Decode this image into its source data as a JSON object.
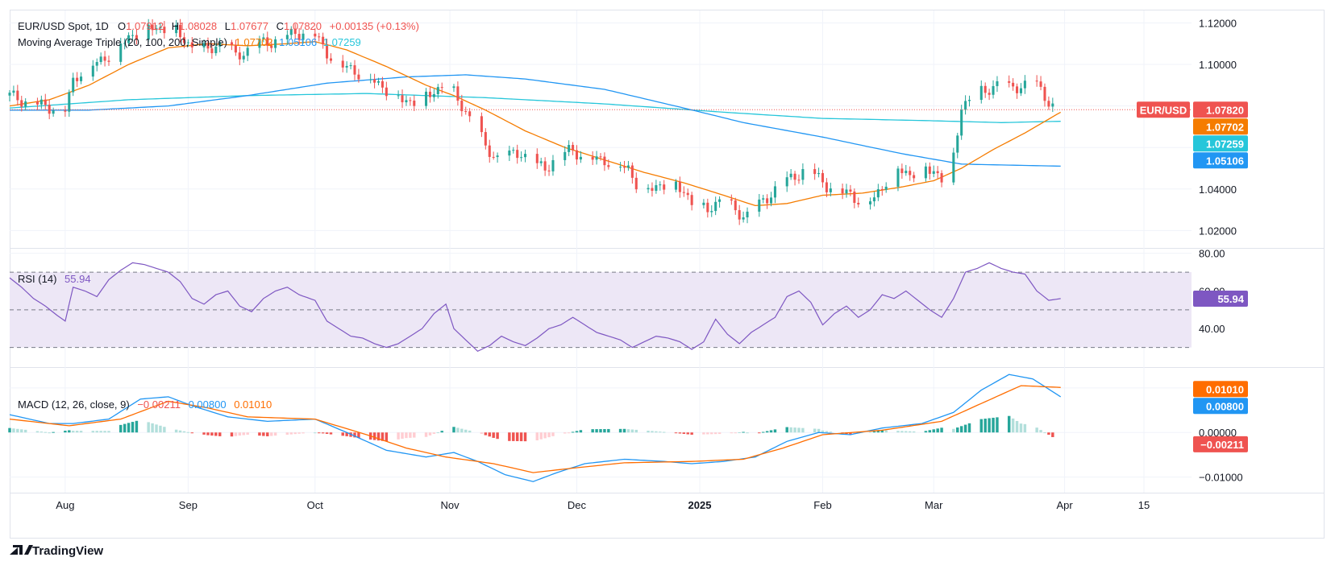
{
  "header": {
    "symbol": "EUR/USD Spot, 1D",
    "o_label": "O",
    "o_value": "1.07912",
    "h_label": "H",
    "h_value": "1.08028",
    "l_label": "L",
    "l_value": "1.07677",
    "c_label": "C",
    "c_value": "1.07820",
    "change": "+0.00135 (+0.13%)"
  },
  "ma_legend": {
    "label": "Moving Average Triple (20, 100, 200, Simple)",
    "v1": "1.07702",
    "v2": "1.05106",
    "v3": "1.07259"
  },
  "rsi_legend": {
    "label": "RSI (14)",
    "value": "55.94"
  },
  "macd_legend": {
    "label": "MACD (12, 26, close, 9)",
    "hist": "−0.00211",
    "macd": "0.00800",
    "signal": "0.01010"
  },
  "branding": {
    "logo_text": "TradingView"
  },
  "colors": {
    "up": "#26a69a",
    "down": "#ef5350",
    "ma20": "#f57c00",
    "ma100": "#2196f3",
    "ma200": "#26c6da",
    "rsi": "#7e57c2",
    "rsi_band": "#ede7f6",
    "macd": "#2196f3",
    "signal": "#ff6d00",
    "hist_up_strong": "#26a69a",
    "hist_up_weak": "#b2dfdb",
    "hist_down_strong": "#ef5350",
    "hist_down_weak": "#ffcdd2",
    "grid": "#f0f3fa",
    "border": "#e0e3eb"
  },
  "chart_data": [
    {
      "type": "candlestick",
      "title": "EUR/USD Spot, 1D",
      "ylim": [
        1.012,
        1.126
      ],
      "yticks": [
        "1.12000",
        "1.10000",
        "1.04000",
        "1.02000"
      ],
      "ytick_values": [
        1.12,
        1.1,
        1.04,
        1.02
      ],
      "x_labels": [
        "Aug",
        "Sep",
        "Oct",
        "Nov",
        "Dec",
        "2025",
        "Feb",
        "Mar",
        "Apr",
        "15"
      ],
      "x_label_index": [
        14,
        45,
        77,
        111,
        143,
        174,
        205,
        233,
        266,
        286
      ],
      "x_range": [
        0,
        298
      ],
      "last_price": {
        "label": "EUR/USD",
        "value": "1.07820",
        "y": 1.0782
      },
      "ma_tags": [
        {
          "value": "1.07702",
          "y": 1.07702,
          "color": "ma20"
        },
        {
          "value": "1.07259",
          "y": 1.07259,
          "color": "ma200"
        },
        {
          "value": "1.05106",
          "y": 1.05106,
          "color": "ma100"
        }
      ],
      "close_anchors": [
        [
          0,
          1.085
        ],
        [
          3,
          1.083
        ],
        [
          6,
          1.081
        ],
        [
          9,
          1.08
        ],
        [
          12,
          1.079
        ],
        [
          14,
          1.078
        ],
        [
          16,
          1.092
        ],
        [
          18,
          1.097
        ],
        [
          21,
          1.1
        ],
        [
          24,
          1.103
        ],
        [
          27,
          1.108
        ],
        [
          30,
          1.113
        ],
        [
          33,
          1.116
        ],
        [
          36,
          1.118
        ],
        [
          39,
          1.117
        ],
        [
          42,
          1.116
        ],
        [
          45,
          1.11
        ],
        [
          48,
          1.106
        ],
        [
          51,
          1.108
        ],
        [
          54,
          1.111
        ],
        [
          57,
          1.104
        ],
        [
          60,
          1.107
        ],
        [
          63,
          1.11
        ],
        [
          66,
          1.111
        ],
        [
          69,
          1.113
        ],
        [
          72,
          1.115
        ],
        [
          75,
          1.116
        ],
        [
          77,
          1.114
        ],
        [
          80,
          1.106
        ],
        [
          83,
          1.1
        ],
        [
          86,
          1.098
        ],
        [
          89,
          1.095
        ],
        [
          92,
          1.092
        ],
        [
          95,
          1.088
        ],
        [
          98,
          1.084
        ],
        [
          101,
          1.082
        ],
        [
          104,
          1.083
        ],
        [
          107,
          1.087
        ],
        [
          110,
          1.091
        ],
        [
          112,
          1.086
        ],
        [
          114,
          1.08
        ],
        [
          117,
          1.072
        ],
        [
          120,
          1.06
        ],
        [
          123,
          1.055
        ],
        [
          126,
          1.056
        ],
        [
          129,
          1.058
        ],
        [
          132,
          1.052
        ],
        [
          135,
          1.05
        ],
        [
          138,
          1.056
        ],
        [
          141,
          1.059
        ],
        [
          144,
          1.057
        ],
        [
          147,
          1.055
        ],
        [
          150,
          1.054
        ],
        [
          153,
          1.052
        ],
        [
          156,
          1.05
        ],
        [
          158,
          1.043
        ],
        [
          161,
          1.04
        ],
        [
          164,
          1.042
        ],
        [
          167,
          1.043
        ],
        [
          170,
          1.039
        ],
        [
          173,
          1.031
        ],
        [
          176,
          1.03
        ],
        [
          179,
          1.035
        ],
        [
          182,
          1.031
        ],
        [
          185,
          1.027
        ],
        [
          188,
          1.03
        ],
        [
          191,
          1.036
        ],
        [
          194,
          1.042
        ],
        [
          197,
          1.045
        ],
        [
          200,
          1.049
        ],
        [
          203,
          1.047
        ],
        [
          206,
          1.042
        ],
        [
          209,
          1.039
        ],
        [
          212,
          1.038
        ],
        [
          215,
          1.033
        ],
        [
          218,
          1.036
        ],
        [
          221,
          1.044
        ],
        [
          224,
          1.05
        ],
        [
          227,
          1.047
        ],
        [
          230,
          1.05
        ],
        [
          233,
          1.049
        ],
        [
          236,
          1.043
        ],
        [
          238,
          1.055
        ],
        [
          240,
          1.08
        ],
        [
          243,
          1.085
        ],
        [
          246,
          1.087
        ],
        [
          249,
          1.091
        ],
        [
          252,
          1.088
        ],
        [
          255,
          1.09
        ],
        [
          258,
          1.092
        ],
        [
          261,
          1.085
        ],
        [
          263,
          1.08
        ],
        [
          265,
          1.078
        ]
      ],
      "ma20_anchors": [
        [
          0,
          1.08
        ],
        [
          10,
          1.083
        ],
        [
          20,
          1.09
        ],
        [
          30,
          1.1
        ],
        [
          40,
          1.108
        ],
        [
          50,
          1.11
        ],
        [
          60,
          1.109
        ],
        [
          70,
          1.11
        ],
        [
          77,
          1.111
        ],
        [
          85,
          1.107
        ],
        [
          95,
          1.099
        ],
        [
          105,
          1.09
        ],
        [
          112,
          1.085
        ],
        [
          120,
          1.078
        ],
        [
          130,
          1.068
        ],
        [
          140,
          1.06
        ],
        [
          150,
          1.054
        ],
        [
          160,
          1.048
        ],
        [
          170,
          1.043
        ],
        [
          180,
          1.037
        ],
        [
          188,
          1.032
        ],
        [
          196,
          1.033
        ],
        [
          205,
          1.037
        ],
        [
          215,
          1.038
        ],
        [
          225,
          1.041
        ],
        [
          233,
          1.044
        ],
        [
          240,
          1.05
        ],
        [
          248,
          1.059
        ],
        [
          256,
          1.067
        ],
        [
          265,
          1.077
        ]
      ],
      "ma100_anchors": [
        [
          0,
          1.078
        ],
        [
          20,
          1.078
        ],
        [
          40,
          1.08
        ],
        [
          60,
          1.085
        ],
        [
          80,
          1.091
        ],
        [
          100,
          1.094
        ],
        [
          115,
          1.095
        ],
        [
          130,
          1.093
        ],
        [
          150,
          1.088
        ],
        [
          170,
          1.079
        ],
        [
          185,
          1.072
        ],
        [
          205,
          1.065
        ],
        [
          225,
          1.057
        ],
        [
          240,
          1.052
        ],
        [
          265,
          1.051
        ]
      ],
      "ma200_anchors": [
        [
          0,
          1.079
        ],
        [
          30,
          1.083
        ],
        [
          60,
          1.085
        ],
        [
          90,
          1.086
        ],
        [
          120,
          1.084
        ],
        [
          150,
          1.081
        ],
        [
          180,
          1.077
        ],
        [
          205,
          1.074
        ],
        [
          230,
          1.073
        ],
        [
          250,
          1.072
        ],
        [
          265,
          1.0726
        ]
      ]
    },
    {
      "type": "line",
      "title": "RSI (14)",
      "ylim": [
        20,
        82
      ],
      "yticks": [
        "80.00",
        "60.00",
        "40.00"
      ],
      "ytick_values": [
        80,
        60,
        40
      ],
      "bands": [
        30,
        50,
        70
      ],
      "last_value": {
        "value": "55.94",
        "y": 55.94
      },
      "anchors": [
        [
          0,
          67
        ],
        [
          3,
          62
        ],
        [
          6,
          56
        ],
        [
          9,
          52
        ],
        [
          12,
          47
        ],
        [
          14,
          44
        ],
        [
          16,
          62
        ],
        [
          19,
          60
        ],
        [
          22,
          57
        ],
        [
          25,
          66
        ],
        [
          28,
          71
        ],
        [
          31,
          75
        ],
        [
          34,
          74
        ],
        [
          37,
          72
        ],
        [
          40,
          70
        ],
        [
          43,
          65
        ],
        [
          46,
          56
        ],
        [
          49,
          53
        ],
        [
          52,
          58
        ],
        [
          55,
          60
        ],
        [
          58,
          52
        ],
        [
          61,
          49
        ],
        [
          64,
          56
        ],
        [
          67,
          60
        ],
        [
          70,
          62
        ],
        [
          73,
          58
        ],
        [
          77,
          55
        ],
        [
          80,
          44
        ],
        [
          83,
          40
        ],
        [
          86,
          36
        ],
        [
          89,
          35
        ],
        [
          92,
          32
        ],
        [
          95,
          30
        ],
        [
          98,
          32
        ],
        [
          101,
          36
        ],
        [
          104,
          40
        ],
        [
          107,
          48
        ],
        [
          110,
          53
        ],
        [
          112,
          40
        ],
        [
          115,
          34
        ],
        [
          118,
          28
        ],
        [
          121,
          31
        ],
        [
          124,
          36
        ],
        [
          127,
          33
        ],
        [
          130,
          31
        ],
        [
          133,
          35
        ],
        [
          136,
          40
        ],
        [
          139,
          42
        ],
        [
          142,
          46
        ],
        [
          145,
          42
        ],
        [
          148,
          38
        ],
        [
          151,
          36
        ],
        [
          154,
          34
        ],
        [
          157,
          30
        ],
        [
          160,
          33
        ],
        [
          163,
          36
        ],
        [
          166,
          35
        ],
        [
          169,
          33
        ],
        [
          172,
          29
        ],
        [
          175,
          33
        ],
        [
          178,
          45
        ],
        [
          181,
          37
        ],
        [
          184,
          32
        ],
        [
          187,
          38
        ],
        [
          190,
          42
        ],
        [
          193,
          46
        ],
        [
          196,
          57
        ],
        [
          199,
          60
        ],
        [
          202,
          54
        ],
        [
          205,
          42
        ],
        [
          208,
          48
        ],
        [
          211,
          52
        ],
        [
          214,
          46
        ],
        [
          217,
          50
        ],
        [
          220,
          58
        ],
        [
          223,
          56
        ],
        [
          226,
          60
        ],
        [
          229,
          55
        ],
        [
          232,
          50
        ],
        [
          235,
          46
        ],
        [
          238,
          56
        ],
        [
          241,
          70
        ],
        [
          244,
          72
        ],
        [
          247,
          75
        ],
        [
          250,
          72
        ],
        [
          253,
          70
        ],
        [
          256,
          69
        ],
        [
          259,
          60
        ],
        [
          262,
          55
        ],
        [
          265,
          55.94
        ]
      ]
    },
    {
      "type": "macd",
      "title": "MACD (12, 26, close, 9)",
      "ylim": [
        -0.0135,
        0.0143
      ],
      "yticks": [
        "0.00000",
        "−0.01000"
      ],
      "ytick_values": [
        0.0,
        -0.01
      ],
      "tags": [
        {
          "value": "0.01010",
          "y": 0.0101,
          "color": "signal"
        },
        {
          "value": "0.00800",
          "y": 0.008,
          "color": "macd"
        },
        {
          "value": "−0.00211",
          "y": -0.00211,
          "color": "down"
        }
      ],
      "macd_anchors": [
        [
          0,
          0.004
        ],
        [
          10,
          0.002
        ],
        [
          16,
          0.002
        ],
        [
          25,
          0.003
        ],
        [
          33,
          0.0075
        ],
        [
          40,
          0.008
        ],
        [
          46,
          0.006
        ],
        [
          55,
          0.0035
        ],
        [
          65,
          0.0025
        ],
        [
          77,
          0.003
        ],
        [
          85,
          0.0
        ],
        [
          95,
          -0.004
        ],
        [
          105,
          -0.0055
        ],
        [
          112,
          -0.0045
        ],
        [
          118,
          -0.0065
        ],
        [
          125,
          -0.0095
        ],
        [
          132,
          -0.011
        ],
        [
          138,
          -0.009
        ],
        [
          145,
          -0.007
        ],
        [
          155,
          -0.006
        ],
        [
          165,
          -0.0065
        ],
        [
          172,
          -0.007
        ],
        [
          180,
          -0.0065
        ],
        [
          188,
          -0.0055
        ],
        [
          196,
          -0.002
        ],
        [
          204,
          0.0
        ],
        [
          212,
          -0.0005
        ],
        [
          220,
          0.001
        ],
        [
          230,
          0.002
        ],
        [
          238,
          0.0045
        ],
        [
          245,
          0.0095
        ],
        [
          252,
          0.013
        ],
        [
          258,
          0.012
        ],
        [
          265,
          0.008
        ]
      ],
      "signal_anchors": [
        [
          0,
          0.003
        ],
        [
          15,
          0.0015
        ],
        [
          28,
          0.003
        ],
        [
          40,
          0.007
        ],
        [
          50,
          0.0055
        ],
        [
          60,
          0.0035
        ],
        [
          77,
          0.003
        ],
        [
          90,
          -0.0005
        ],
        [
          100,
          -0.0035
        ],
        [
          110,
          -0.0055
        ],
        [
          122,
          -0.007
        ],
        [
          132,
          -0.009
        ],
        [
          142,
          -0.008
        ],
        [
          155,
          -0.0068
        ],
        [
          172,
          -0.0065
        ],
        [
          185,
          -0.006
        ],
        [
          195,
          -0.0035
        ],
        [
          205,
          -0.0005
        ],
        [
          220,
          0.0005
        ],
        [
          235,
          0.0025
        ],
        [
          245,
          0.0065
        ],
        [
          255,
          0.0105
        ],
        [
          265,
          0.0101
        ]
      ]
    }
  ]
}
